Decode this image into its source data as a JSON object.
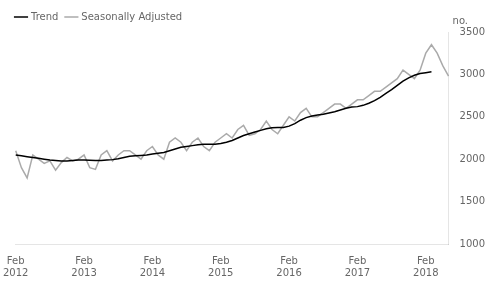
{
  "chart_data": {
    "type": "line",
    "ylabel": "no.",
    "categories": [
      "Feb 2012",
      null,
      null,
      null,
      null,
      null,
      null,
      null,
      null,
      null,
      null,
      null,
      "Feb 2013",
      null,
      null,
      null,
      null,
      null,
      null,
      null,
      null,
      null,
      null,
      null,
      "Feb 2014",
      null,
      null,
      null,
      null,
      null,
      null,
      null,
      null,
      null,
      null,
      null,
      "Feb 2015",
      null,
      null,
      null,
      null,
      null,
      null,
      null,
      null,
      null,
      null,
      null,
      "Feb 2016",
      null,
      null,
      null,
      null,
      null,
      null,
      null,
      null,
      null,
      null,
      null,
      "Feb 2017",
      null,
      null,
      null,
      null,
      null,
      null,
      null,
      null,
      null,
      null,
      null,
      "Feb 2018",
      null,
      null,
      null,
      null
    ],
    "series": [
      {
        "name": "Trend",
        "color": "#000000",
        "values": [
          2050,
          2040,
          2030,
          2020,
          2010,
          2000,
          1990,
          1985,
          1980,
          1980,
          1985,
          1990,
          1992,
          1988,
          1985,
          1985,
          1990,
          1995,
          2005,
          2020,
          2035,
          2040,
          2045,
          2050,
          2060,
          2070,
          2080,
          2100,
          2120,
          2140,
          2150,
          2160,
          2170,
          2175,
          2175,
          2175,
          2185,
          2200,
          2220,
          2250,
          2280,
          2300,
          2320,
          2340,
          2360,
          2370,
          2375,
          2375,
          2390,
          2420,
          2460,
          2490,
          2510,
          2520,
          2530,
          2545,
          2560,
          2580,
          2600,
          2615,
          2620,
          2635,
          2660,
          2690,
          2730,
          2775,
          2820,
          2870,
          2920,
          2960,
          2990,
          3010,
          3020,
          3030,
          null,
          null,
          null
        ]
      },
      {
        "name": "Seasonally Adjusted",
        "color": "#aaaaaa",
        "values": [
          2100,
          1900,
          1780,
          2050,
          2000,
          1950,
          1980,
          1870,
          1960,
          2020,
          1980,
          2000,
          2050,
          1900,
          1880,
          2050,
          2100,
          1980,
          2050,
          2100,
          2100,
          2050,
          2000,
          2100,
          2150,
          2050,
          2000,
          2200,
          2250,
          2200,
          2100,
          2200,
          2250,
          2150,
          2100,
          2200,
          2250,
          2300,
          2250,
          2350,
          2400,
          2280,
          2300,
          2350,
          2450,
          2350,
          2300,
          2400,
          2500,
          2450,
          2550,
          2600,
          2500,
          2500,
          2550,
          2600,
          2650,
          2650,
          2600,
          2650,
          2700,
          2700,
          2750,
          2800,
          2800,
          2850,
          2900,
          2950,
          3050,
          3000,
          2950,
          3050,
          3250,
          3350,
          3250,
          3100,
          2980
        ]
      }
    ],
    "ylim": [
      1000,
      3500
    ],
    "yticks": [
      1000,
      1500,
      2000,
      2500,
      3000,
      3500
    ],
    "grid": false,
    "legend": "upper left"
  }
}
